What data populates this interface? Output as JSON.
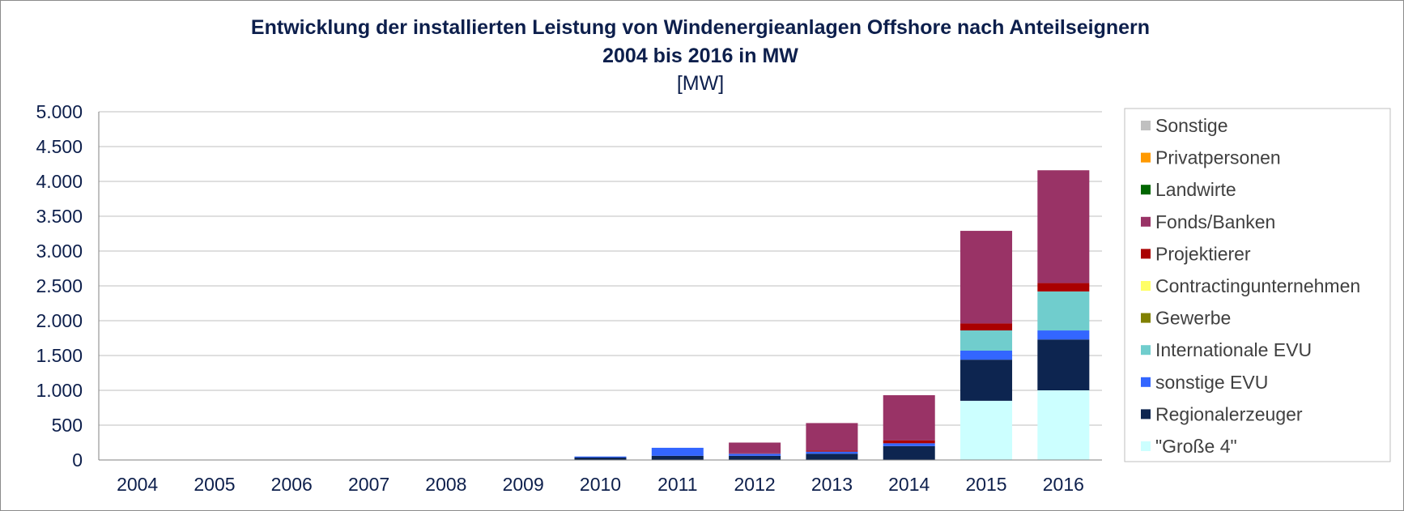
{
  "chart_data": {
    "type": "bar",
    "stacked": true,
    "title": "Entwicklung der installierten Leistung von Windenergieanlagen Offshore nach Anteilseignern",
    "subtitle": "2004 bis 2016 in MW",
    "unit": "[MW]",
    "xlabel": "",
    "ylabel": "",
    "ylim": [
      0,
      5000
    ],
    "yticks": [
      0,
      500,
      1000,
      1500,
      2000,
      2500,
      3000,
      3500,
      4000,
      4500,
      5000
    ],
    "ytick_labels": [
      "0",
      "500",
      "1.000",
      "1.500",
      "2.000",
      "2.500",
      "3.000",
      "3.500",
      "4.000",
      "4.500",
      "5.000"
    ],
    "grid": true,
    "legend_position": "right",
    "categories": [
      "2004",
      "2005",
      "2006",
      "2007",
      "2008",
      "2009",
      "2010",
      "2011",
      "2012",
      "2013",
      "2014",
      "2015",
      "2016"
    ],
    "series": [
      {
        "name": "\"Große 4\"",
        "color": "#ccffff",
        "values": [
          0,
          0,
          0,
          0,
          0,
          0,
          0,
          0,
          0,
          0,
          0,
          850,
          1000
        ]
      },
      {
        "name": "Regionalerzeuger",
        "color": "#0d2550",
        "values": [
          0,
          0,
          0,
          0,
          0,
          0,
          35,
          60,
          60,
          90,
          200,
          590,
          730
        ]
      },
      {
        "name": "sonstige EVU",
        "color": "#3366ff",
        "values": [
          0,
          0,
          0,
          0,
          0,
          0,
          15,
          115,
          30,
          30,
          40,
          130,
          130
        ]
      },
      {
        "name": "Internationale EVU",
        "color": "#70cdcd",
        "values": [
          0,
          0,
          0,
          0,
          0,
          0,
          0,
          0,
          0,
          0,
          0,
          290,
          560
        ]
      },
      {
        "name": "Gewerbe",
        "color": "#808000",
        "values": [
          0,
          0,
          0,
          0,
          0,
          0,
          0,
          0,
          0,
          0,
          0,
          0,
          0
        ]
      },
      {
        "name": "Contractingunternehmen",
        "color": "#ffff66",
        "values": [
          0,
          0,
          0,
          0,
          0,
          0,
          0,
          0,
          0,
          0,
          0,
          0,
          0
        ]
      },
      {
        "name": "Projektierer",
        "color": "#aa0000",
        "values": [
          0,
          0,
          0,
          0,
          0,
          0,
          0,
          0,
          5,
          15,
          40,
          100,
          120
        ]
      },
      {
        "name": "Fonds/Banken",
        "color": "#993366",
        "values": [
          0,
          0,
          0,
          0,
          0,
          0,
          0,
          0,
          155,
          395,
          650,
          1330,
          1620
        ]
      },
      {
        "name": "Landwirte",
        "color": "#006600",
        "values": [
          0,
          0,
          0,
          0,
          0,
          0,
          0,
          0,
          0,
          0,
          0,
          0,
          0
        ]
      },
      {
        "name": "Privatpersonen",
        "color": "#ff9900",
        "values": [
          0,
          0,
          0,
          0,
          0,
          0,
          0,
          0,
          0,
          0,
          0,
          0,
          0
        ]
      },
      {
        "name": "Sonstige",
        "color": "#c0c0c0",
        "values": [
          0,
          0,
          0,
          0,
          0,
          0,
          0,
          0,
          0,
          0,
          0,
          0,
          0
        ]
      }
    ],
    "legend_order": [
      "Sonstige",
      "Privatpersonen",
      "Landwirte",
      "Fonds/Banken",
      "Projektierer",
      "Contractingunternehmen",
      "Gewerbe",
      "Internationale EVU",
      "sonstige EVU",
      "Regionalerzeuger",
      "\"Große 4\""
    ]
  },
  "colors": {
    "title": "#0d1f4c",
    "axis_text": "#0d1f4c",
    "gridline": "#bfbfbf",
    "legend_text": "#404040",
    "legend_border": "#bfbfbf"
  }
}
